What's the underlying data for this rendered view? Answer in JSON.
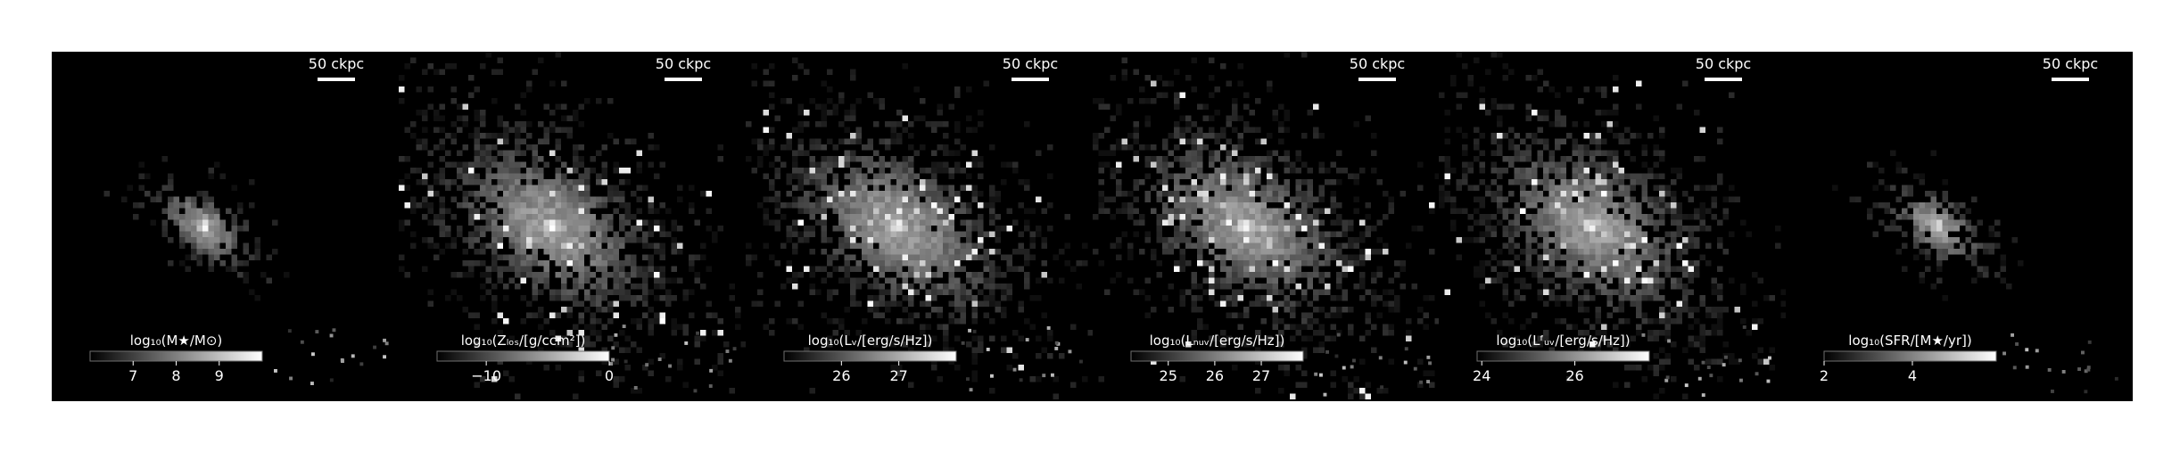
{
  "figure": {
    "colormap": "greys",
    "background_color": "#000000",
    "foreground_color": "#ffffff"
  },
  "chart_data": [
    {
      "type": "heatmap",
      "scalebar_label": "50 ckpc",
      "colorbar_label": "log₁₀(M★/M⊙)",
      "colorbar_range": [
        6.0,
        10.0
      ],
      "colorbar_ticks": [
        {
          "value": 7,
          "label": "7"
        },
        {
          "value": 8,
          "label": "8"
        },
        {
          "value": 9,
          "label": "9"
        }
      ],
      "morphology": "compact"
    },
    {
      "type": "heatmap",
      "scalebar_label": "50 ckpc",
      "colorbar_label": "log₁₀(Zₗₒₛ/[g/ccm²])",
      "colorbar_range": [
        -14.0,
        0.0
      ],
      "colorbar_ticks": [
        {
          "value": -10,
          "label": "−10"
        },
        {
          "value": 0,
          "label": "0"
        }
      ],
      "morphology": "extended"
    },
    {
      "type": "heatmap",
      "scalebar_label": "50 ckpc",
      "colorbar_label": "log₁₀(Lᵥ/[erg/s/Hz])",
      "colorbar_range": [
        25.0,
        28.0
      ],
      "colorbar_ticks": [
        {
          "value": 26,
          "label": "26"
        },
        {
          "value": 27,
          "label": "27"
        }
      ],
      "morphology": "extended"
    },
    {
      "type": "heatmap",
      "scalebar_label": "50 ckpc",
      "colorbar_label": "log₁₀(Lₙᵤᵥ/[erg/s/Hz])",
      "colorbar_range": [
        24.2,
        27.9
      ],
      "colorbar_ticks": [
        {
          "value": 25,
          "label": "25"
        },
        {
          "value": 26,
          "label": "26"
        },
        {
          "value": 27,
          "label": "27"
        }
      ],
      "morphology": "extended"
    },
    {
      "type": "heatmap",
      "scalebar_label": "50 ckpc",
      "colorbar_label": "log₁₀(Lᶠᵤᵥ/[erg/s/Hz])",
      "colorbar_range": [
        23.9,
        27.6
      ],
      "colorbar_ticks": [
        {
          "value": 24,
          "label": "24"
        },
        {
          "value": 26,
          "label": "26"
        }
      ],
      "morphology": "extended"
    },
    {
      "type": "heatmap",
      "scalebar_label": "50 ckpc",
      "colorbar_label": "log₁₀(SFR/[M★/yr])",
      "colorbar_range": [
        2.0,
        5.9
      ],
      "colorbar_ticks": [
        {
          "value": 2,
          "label": "2"
        },
        {
          "value": 4,
          "label": "4"
        }
      ],
      "morphology": "compact"
    }
  ]
}
